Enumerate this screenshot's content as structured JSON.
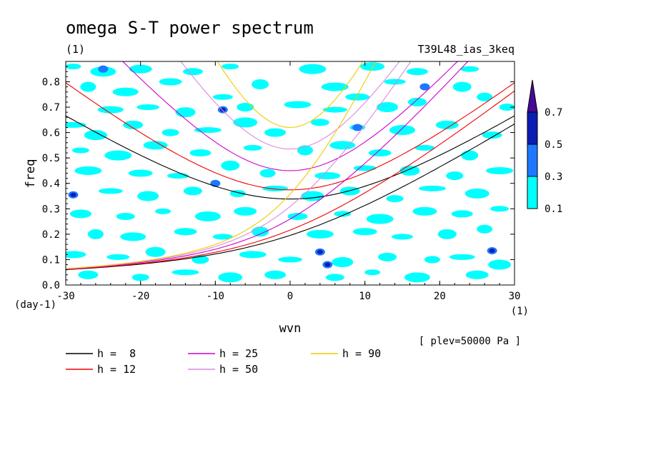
{
  "chart_data": {
    "type": "heatmap",
    "title": "omega S-T power spectrum",
    "unit_label": "(1)",
    "experiment": "T39L48_ias_3keq",
    "xlabel": "wvn",
    "ylabel": "freq",
    "x_unit": "(1)",
    "y_unit": "(day-1)",
    "annotation": "[ plev=50000 Pa ]",
    "xlim": [
      -30,
      30
    ],
    "ylim": [
      0,
      0.88
    ],
    "xticks": [
      "-30",
      "-20",
      "-10",
      "0",
      "10",
      "20",
      "30"
    ],
    "yticks": [
      "0.0",
      "0.1",
      "0.2",
      "0.3",
      "0.4",
      "0.5",
      "0.6",
      "0.7",
      "0.8"
    ],
    "colorbar": {
      "levels": [
        "0.1",
        "0.3",
        "0.5",
        "0.7"
      ],
      "colors": [
        "#00ffff",
        "#1e78ff",
        "#0a1eb4",
        "#460a96"
      ]
    },
    "contour_blobs": [
      {
        "x": -29,
        "y": 0.86,
        "level": 0
      },
      {
        "x": -25,
        "y": 0.84,
        "level": 0
      },
      {
        "x": -20,
        "y": 0.85,
        "level": 0
      },
      {
        "x": -13,
        "y": 0.84,
        "level": 0
      },
      {
        "x": -8,
        "y": 0.86,
        "level": 0
      },
      {
        "x": 3,
        "y": 0.85,
        "level": 0
      },
      {
        "x": 11,
        "y": 0.86,
        "level": 0
      },
      {
        "x": 17,
        "y": 0.84,
        "level": 0
      },
      {
        "x": 24,
        "y": 0.85,
        "level": 0
      },
      {
        "x": -27,
        "y": 0.78,
        "level": 0
      },
      {
        "x": -22,
        "y": 0.76,
        "level": 0
      },
      {
        "x": -16,
        "y": 0.8,
        "level": 0
      },
      {
        "x": -9,
        "y": 0.74,
        "level": 0
      },
      {
        "x": -4,
        "y": 0.79,
        "level": 0
      },
      {
        "x": 6,
        "y": 0.78,
        "level": 0
      },
      {
        "x": 9,
        "y": 0.74,
        "level": 0
      },
      {
        "x": 14,
        "y": 0.8,
        "level": 0
      },
      {
        "x": 23,
        "y": 0.78,
        "level": 0
      },
      {
        "x": 26,
        "y": 0.74,
        "level": 0
      },
      {
        "x": -24,
        "y": 0.69,
        "level": 0
      },
      {
        "x": -19,
        "y": 0.7,
        "level": 0
      },
      {
        "x": -14,
        "y": 0.68,
        "level": 0
      },
      {
        "x": -6,
        "y": 0.7,
        "level": 0
      },
      {
        "x": 1,
        "y": 0.71,
        "level": 0
      },
      {
        "x": 6,
        "y": 0.69,
        "level": 0
      },
      {
        "x": 13,
        "y": 0.7,
        "level": 0
      },
      {
        "x": 17,
        "y": 0.72,
        "level": 0
      },
      {
        "x": 29,
        "y": 0.7,
        "level": 0
      },
      {
        "x": -29,
        "y": 0.63,
        "level": 0
      },
      {
        "x": -26,
        "y": 0.59,
        "level": 0
      },
      {
        "x": -21,
        "y": 0.63,
        "level": 0
      },
      {
        "x": -16,
        "y": 0.6,
        "level": 0
      },
      {
        "x": -11,
        "y": 0.61,
        "level": 0
      },
      {
        "x": -6,
        "y": 0.64,
        "level": 0
      },
      {
        "x": -2,
        "y": 0.6,
        "level": 0
      },
      {
        "x": 4,
        "y": 0.64,
        "level": 0
      },
      {
        "x": 9,
        "y": 0.62,
        "level": 0
      },
      {
        "x": 15,
        "y": 0.61,
        "level": 0
      },
      {
        "x": 21,
        "y": 0.63,
        "level": 0
      },
      {
        "x": 27,
        "y": 0.59,
        "level": 0
      },
      {
        "x": -28,
        "y": 0.53,
        "level": 0
      },
      {
        "x": -23,
        "y": 0.51,
        "level": 0
      },
      {
        "x": -18,
        "y": 0.55,
        "level": 0
      },
      {
        "x": -12,
        "y": 0.52,
        "level": 0
      },
      {
        "x": -5,
        "y": 0.54,
        "level": 0
      },
      {
        "x": 2,
        "y": 0.53,
        "level": 0
      },
      {
        "x": 7,
        "y": 0.55,
        "level": 0
      },
      {
        "x": 12,
        "y": 0.52,
        "level": 0
      },
      {
        "x": 18,
        "y": 0.54,
        "level": 0
      },
      {
        "x": 24,
        "y": 0.51,
        "level": 0
      },
      {
        "x": -27,
        "y": 0.45,
        "level": 0
      },
      {
        "x": -20,
        "y": 0.44,
        "level": 0
      },
      {
        "x": -15,
        "y": 0.43,
        "level": 0
      },
      {
        "x": -8,
        "y": 0.47,
        "level": 0
      },
      {
        "x": -3,
        "y": 0.44,
        "level": 0
      },
      {
        "x": 5,
        "y": 0.43,
        "level": 0
      },
      {
        "x": 10,
        "y": 0.46,
        "level": 0
      },
      {
        "x": 16,
        "y": 0.45,
        "level": 0
      },
      {
        "x": 22,
        "y": 0.43,
        "level": 0
      },
      {
        "x": 28,
        "y": 0.45,
        "level": 0
      },
      {
        "x": -24,
        "y": 0.37,
        "level": 0
      },
      {
        "x": -19,
        "y": 0.35,
        "level": 0
      },
      {
        "x": -13,
        "y": 0.37,
        "level": 0
      },
      {
        "x": -7,
        "y": 0.36,
        "level": 0
      },
      {
        "x": -2,
        "y": 0.38,
        "level": 0
      },
      {
        "x": 3,
        "y": 0.35,
        "level": 0
      },
      {
        "x": 8,
        "y": 0.37,
        "level": 0
      },
      {
        "x": 14,
        "y": 0.34,
        "level": 0
      },
      {
        "x": 19,
        "y": 0.38,
        "level": 0
      },
      {
        "x": 25,
        "y": 0.36,
        "level": 0
      },
      {
        "x": -28,
        "y": 0.28,
        "level": 0
      },
      {
        "x": -22,
        "y": 0.27,
        "level": 0
      },
      {
        "x": -17,
        "y": 0.29,
        "level": 0
      },
      {
        "x": -11,
        "y": 0.27,
        "level": 0
      },
      {
        "x": -6,
        "y": 0.29,
        "level": 0
      },
      {
        "x": 1,
        "y": 0.27,
        "level": 0
      },
      {
        "x": 7,
        "y": 0.28,
        "level": 0
      },
      {
        "x": 12,
        "y": 0.26,
        "level": 0
      },
      {
        "x": 18,
        "y": 0.29,
        "level": 0
      },
      {
        "x": 23,
        "y": 0.28,
        "level": 0
      },
      {
        "x": 28,
        "y": 0.3,
        "level": 0
      },
      {
        "x": -26,
        "y": 0.2,
        "level": 0
      },
      {
        "x": -21,
        "y": 0.19,
        "level": 0
      },
      {
        "x": -14,
        "y": 0.21,
        "level": 0
      },
      {
        "x": -9,
        "y": 0.19,
        "level": 0
      },
      {
        "x": -4,
        "y": 0.21,
        "level": 0
      },
      {
        "x": 4,
        "y": 0.2,
        "level": 0
      },
      {
        "x": 10,
        "y": 0.21,
        "level": 0
      },
      {
        "x": 15,
        "y": 0.19,
        "level": 0
      },
      {
        "x": 21,
        "y": 0.2,
        "level": 0
      },
      {
        "x": 26,
        "y": 0.22,
        "level": 0
      },
      {
        "x": -29,
        "y": 0.12,
        "level": 0
      },
      {
        "x": -23,
        "y": 0.11,
        "level": 0
      },
      {
        "x": -18,
        "y": 0.13,
        "level": 0
      },
      {
        "x": -12,
        "y": 0.1,
        "level": 0
      },
      {
        "x": -5,
        "y": 0.12,
        "level": 0
      },
      {
        "x": 0,
        "y": 0.1,
        "level": 0
      },
      {
        "x": 7,
        "y": 0.09,
        "level": 0
      },
      {
        "x": 13,
        "y": 0.11,
        "level": 0
      },
      {
        "x": 19,
        "y": 0.1,
        "level": 0
      },
      {
        "x": 23,
        "y": 0.11,
        "level": 0
      },
      {
        "x": 28,
        "y": 0.08,
        "level": 0
      },
      {
        "x": -27,
        "y": 0.04,
        "level": 0
      },
      {
        "x": -20,
        "y": 0.03,
        "level": 0
      },
      {
        "x": -14,
        "y": 0.05,
        "level": 0
      },
      {
        "x": -8,
        "y": 0.03,
        "level": 0
      },
      {
        "x": -2,
        "y": 0.04,
        "level": 0
      },
      {
        "x": 6,
        "y": 0.03,
        "level": 0
      },
      {
        "x": 11,
        "y": 0.05,
        "level": 0
      },
      {
        "x": 17,
        "y": 0.03,
        "level": 0
      },
      {
        "x": 25,
        "y": 0.04,
        "level": 0
      },
      {
        "x": -29,
        "y": 0.355,
        "level": 1
      },
      {
        "x": -29,
        "y": 0.355,
        "level": 2
      },
      {
        "x": 4,
        "y": 0.13,
        "level": 1
      },
      {
        "x": 4,
        "y": 0.13,
        "level": 2
      },
      {
        "x": 27,
        "y": 0.135,
        "level": 1
      },
      {
        "x": 27,
        "y": 0.135,
        "level": 2
      },
      {
        "x": -9,
        "y": 0.69,
        "level": 1
      },
      {
        "x": -9,
        "y": 0.69,
        "level": 2
      },
      {
        "x": 5,
        "y": 0.08,
        "level": 1
      },
      {
        "x": 5,
        "y": 0.08,
        "level": 2
      },
      {
        "x": -25,
        "y": 0.85,
        "level": 1
      },
      {
        "x": -10,
        "y": 0.4,
        "level": 1
      },
      {
        "x": 9,
        "y": 0.62,
        "level": 1
      },
      {
        "x": 18,
        "y": 0.78,
        "level": 1
      }
    ],
    "series": [
      {
        "name": "h = 8",
        "label": "h =  8",
        "h": 8,
        "color": "#000000"
      },
      {
        "name": "h = 12",
        "label": "h = 12",
        "h": 12,
        "color": "#ee0000"
      },
      {
        "name": "h = 25",
        "label": "h = 25",
        "h": 25,
        "color": "#cc00cc"
      },
      {
        "name": "h = 50",
        "label": "h = 50",
        "h": 50,
        "color": "#dd88dd"
      },
      {
        "name": "h = 90",
        "label": "h = 90",
        "h": 90,
        "color": "#eecc00"
      }
    ]
  }
}
